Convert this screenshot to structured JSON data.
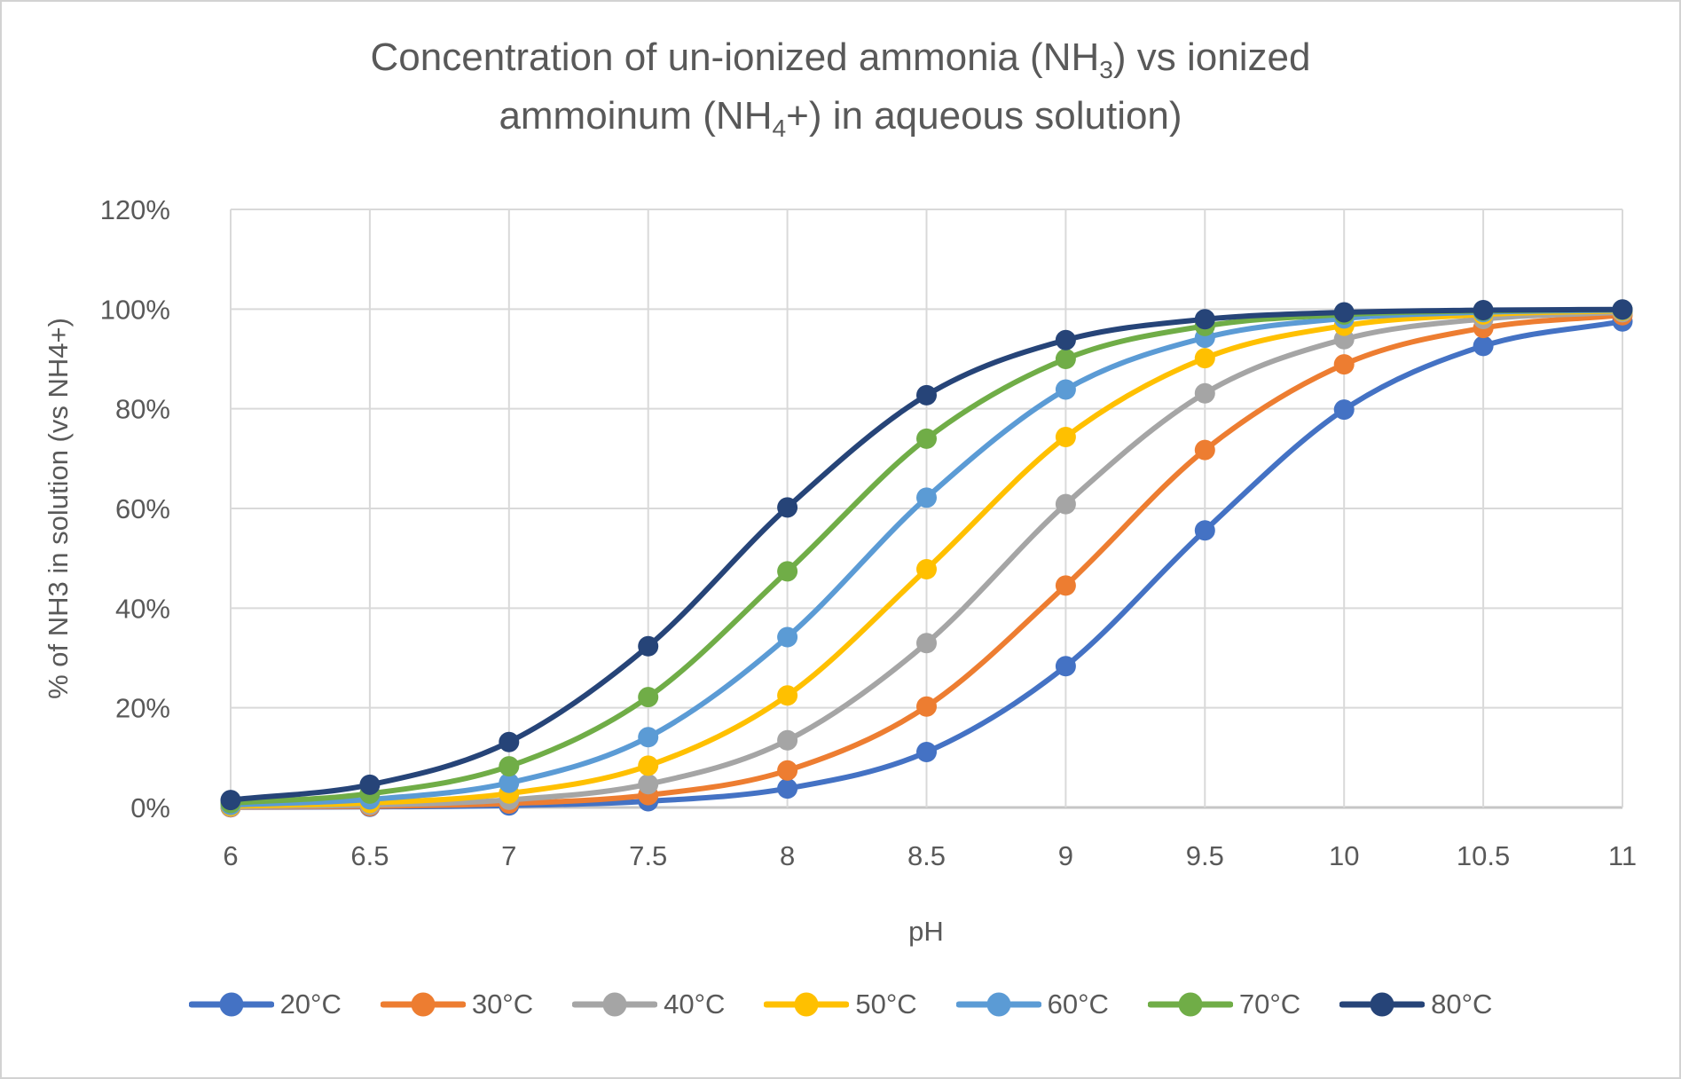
{
  "title": {
    "line1_pre": "Concentration of un-ionized ammonia (NH",
    "line1_sub": "3",
    "line1_post": ") vs ionized",
    "line2_pre": "ammoinum (NH",
    "line2_sub": "4",
    "line2_post": "+) in aqueous solution)",
    "color": "#595959"
  },
  "axes": {
    "x_title": "pH",
    "y_title": "% of NH3 in solution (vs NH4+)",
    "x_ticks": [
      "6",
      "6.5",
      "7",
      "7.5",
      "8",
      "8.5",
      "9",
      "9.5",
      "10",
      "10.5",
      "11"
    ],
    "y_ticks": [
      "0%",
      "20%",
      "40%",
      "60%",
      "80%",
      "100%",
      "120%"
    ],
    "grid_color": "#d9d9d9",
    "axis_line_color": "#c6c6c6",
    "label_color": "#595959"
  },
  "chart_data": {
    "type": "line",
    "title": "Concentration of un-ionized ammonia (NH3) vs ionized ammoinum (NH4+) in aqueous solution)",
    "xlabel": "pH",
    "ylabel": "% of NH3 in solution (vs NH4+)",
    "xlim": [
      6,
      11
    ],
    "ylim": [
      0,
      120
    ],
    "y_unit": "%",
    "grid": true,
    "smooth": true,
    "marker": "circle",
    "legend_position": "bottom",
    "x": [
      6,
      6.5,
      7,
      7.5,
      8,
      8.5,
      9,
      9.5,
      10,
      10.5,
      11
    ],
    "series": [
      {
        "name": "20°C",
        "color": "#4472C4",
        "values": [
          0.04,
          0.12,
          0.39,
          1.24,
          3.81,
          11.12,
          28.35,
          55.58,
          79.83,
          92.6,
          97.53
        ]
      },
      {
        "name": "30°C",
        "color": "#ED7D31",
        "values": [
          0.08,
          0.25,
          0.8,
          2.48,
          7.43,
          20.25,
          44.53,
          71.74,
          88.92,
          96.21,
          98.77
        ]
      },
      {
        "name": "40°C",
        "color": "#A5A5A5",
        "values": [
          0.16,
          0.49,
          1.53,
          4.69,
          13.47,
          32.98,
          60.88,
          83.11,
          93.96,
          98.01,
          99.36
        ]
      },
      {
        "name": "50°C",
        "color": "#FFC000",
        "values": [
          0.29,
          0.91,
          2.82,
          8.39,
          22.46,
          47.8,
          74.34,
          90.16,
          96.66,
          98.92,
          99.66
        ]
      },
      {
        "name": "60°C",
        "color": "#5B9BD5",
        "values": [
          0.52,
          1.62,
          4.94,
          14.1,
          34.18,
          62.15,
          83.85,
          94.26,
          98.11,
          99.39,
          99.81
        ]
      },
      {
        "name": "70°C",
        "color": "#70AD47",
        "values": [
          0.89,
          2.77,
          8.26,
          22.15,
          47.37,
          74.0,
          90.0,
          96.61,
          98.9,
          99.65,
          99.89
        ]
      },
      {
        "name": "80°C",
        "color": "#264478",
        "values": [
          1.49,
          4.56,
          13.14,
          32.35,
          60.19,
          82.71,
          93.8,
          97.95,
          99.34,
          99.79,
          99.93
        ]
      }
    ]
  }
}
